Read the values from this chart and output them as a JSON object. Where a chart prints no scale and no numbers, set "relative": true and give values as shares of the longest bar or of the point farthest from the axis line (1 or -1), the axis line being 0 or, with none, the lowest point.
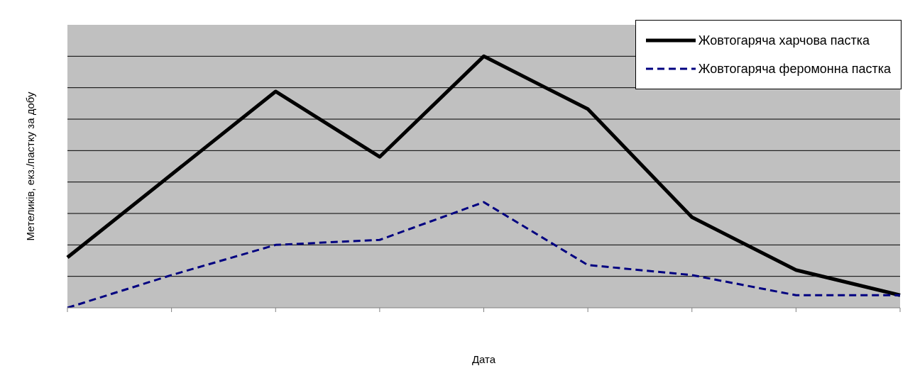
{
  "chart_data": {
    "type": "line",
    "relative": true,
    "xlabel": "Дата",
    "ylabel": "Метеликів, екз./пастку за добу",
    "categories": [
      null,
      null,
      null,
      null,
      null,
      null,
      null,
      null,
      null
    ],
    "grid": "y",
    "legend": "top right",
    "marker": "none",
    "series": [
      {
        "name": "Жовтогаряча харчова пастка",
        "color": "#000000",
        "line_style": "solid",
        "values": [
          0.2,
          0.53,
          0.86,
          0.6,
          1,
          0.79,
          0.36,
          0.15,
          0.05
        ]
      },
      {
        "name": "Жовтогаряча феромонна пастка",
        "color": "#000080",
        "line_style": "dashed",
        "values": [
          0,
          0.13,
          0.25,
          0.27,
          0.42,
          0.17,
          0.13,
          0.05,
          0.05
        ]
      }
    ]
  }
}
